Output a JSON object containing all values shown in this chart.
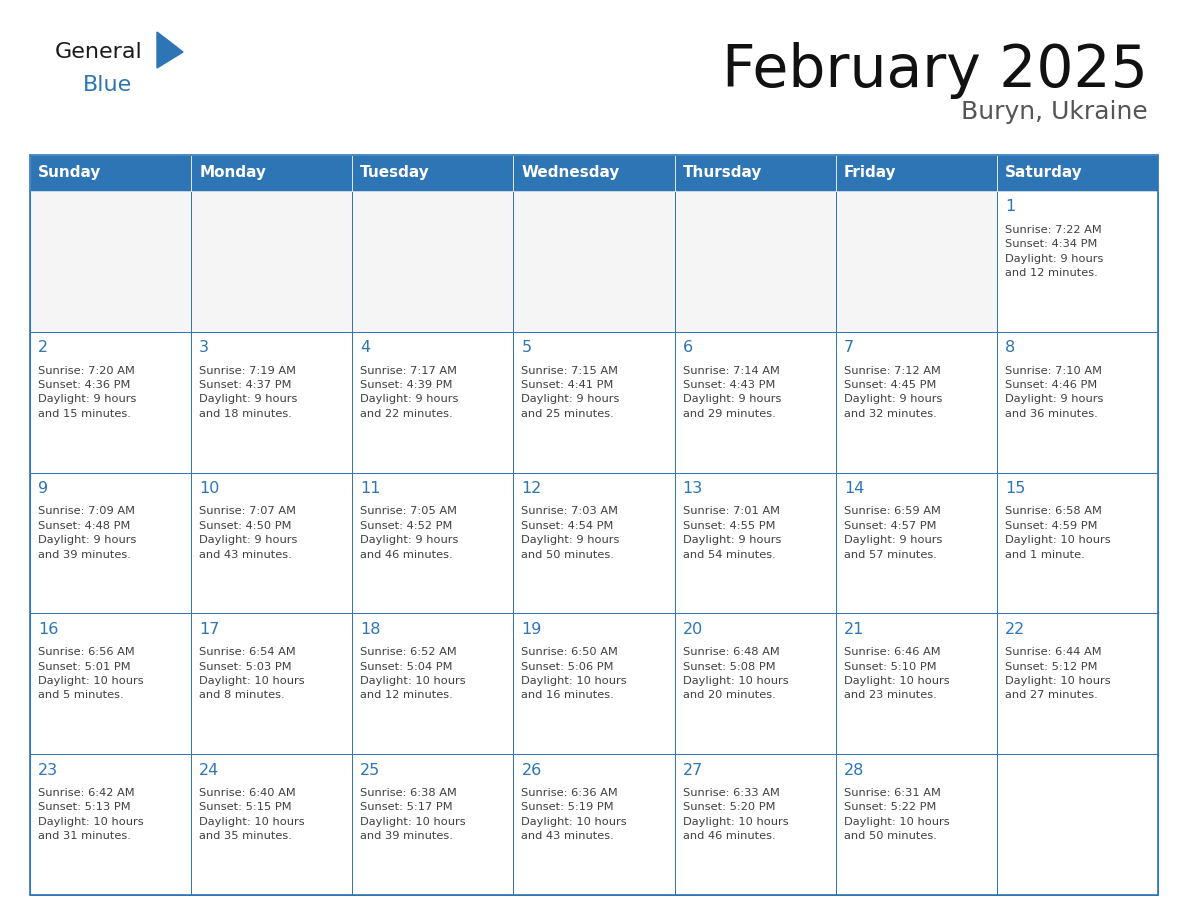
{
  "title": "February 2025",
  "subtitle": "Buryn, Ukraine",
  "header_color": "#2E75B6",
  "header_text_color": "#FFFFFF",
  "cell_bg_color": "#FFFFFF",
  "cell_alt_bg": "#F2F2F2",
  "border_color": "#2E75B6",
  "day_number_color": "#2E75B6",
  "info_text_color": "#404040",
  "days_of_week": [
    "Sunday",
    "Monday",
    "Tuesday",
    "Wednesday",
    "Thursday",
    "Friday",
    "Saturday"
  ],
  "calendar_data": [
    [
      {
        "day": null,
        "info": ""
      },
      {
        "day": null,
        "info": ""
      },
      {
        "day": null,
        "info": ""
      },
      {
        "day": null,
        "info": ""
      },
      {
        "day": null,
        "info": ""
      },
      {
        "day": null,
        "info": ""
      },
      {
        "day": 1,
        "info": "Sunrise: 7:22 AM\nSunset: 4:34 PM\nDaylight: 9 hours\nand 12 minutes."
      }
    ],
    [
      {
        "day": 2,
        "info": "Sunrise: 7:20 AM\nSunset: 4:36 PM\nDaylight: 9 hours\nand 15 minutes."
      },
      {
        "day": 3,
        "info": "Sunrise: 7:19 AM\nSunset: 4:37 PM\nDaylight: 9 hours\nand 18 minutes."
      },
      {
        "day": 4,
        "info": "Sunrise: 7:17 AM\nSunset: 4:39 PM\nDaylight: 9 hours\nand 22 minutes."
      },
      {
        "day": 5,
        "info": "Sunrise: 7:15 AM\nSunset: 4:41 PM\nDaylight: 9 hours\nand 25 minutes."
      },
      {
        "day": 6,
        "info": "Sunrise: 7:14 AM\nSunset: 4:43 PM\nDaylight: 9 hours\nand 29 minutes."
      },
      {
        "day": 7,
        "info": "Sunrise: 7:12 AM\nSunset: 4:45 PM\nDaylight: 9 hours\nand 32 minutes."
      },
      {
        "day": 8,
        "info": "Sunrise: 7:10 AM\nSunset: 4:46 PM\nDaylight: 9 hours\nand 36 minutes."
      }
    ],
    [
      {
        "day": 9,
        "info": "Sunrise: 7:09 AM\nSunset: 4:48 PM\nDaylight: 9 hours\nand 39 minutes."
      },
      {
        "day": 10,
        "info": "Sunrise: 7:07 AM\nSunset: 4:50 PM\nDaylight: 9 hours\nand 43 minutes."
      },
      {
        "day": 11,
        "info": "Sunrise: 7:05 AM\nSunset: 4:52 PM\nDaylight: 9 hours\nand 46 minutes."
      },
      {
        "day": 12,
        "info": "Sunrise: 7:03 AM\nSunset: 4:54 PM\nDaylight: 9 hours\nand 50 minutes."
      },
      {
        "day": 13,
        "info": "Sunrise: 7:01 AM\nSunset: 4:55 PM\nDaylight: 9 hours\nand 54 minutes."
      },
      {
        "day": 14,
        "info": "Sunrise: 6:59 AM\nSunset: 4:57 PM\nDaylight: 9 hours\nand 57 minutes."
      },
      {
        "day": 15,
        "info": "Sunrise: 6:58 AM\nSunset: 4:59 PM\nDaylight: 10 hours\nand 1 minute."
      }
    ],
    [
      {
        "day": 16,
        "info": "Sunrise: 6:56 AM\nSunset: 5:01 PM\nDaylight: 10 hours\nand 5 minutes."
      },
      {
        "day": 17,
        "info": "Sunrise: 6:54 AM\nSunset: 5:03 PM\nDaylight: 10 hours\nand 8 minutes."
      },
      {
        "day": 18,
        "info": "Sunrise: 6:52 AM\nSunset: 5:04 PM\nDaylight: 10 hours\nand 12 minutes."
      },
      {
        "day": 19,
        "info": "Sunrise: 6:50 AM\nSunset: 5:06 PM\nDaylight: 10 hours\nand 16 minutes."
      },
      {
        "day": 20,
        "info": "Sunrise: 6:48 AM\nSunset: 5:08 PM\nDaylight: 10 hours\nand 20 minutes."
      },
      {
        "day": 21,
        "info": "Sunrise: 6:46 AM\nSunset: 5:10 PM\nDaylight: 10 hours\nand 23 minutes."
      },
      {
        "day": 22,
        "info": "Sunrise: 6:44 AM\nSunset: 5:12 PM\nDaylight: 10 hours\nand 27 minutes."
      }
    ],
    [
      {
        "day": 23,
        "info": "Sunrise: 6:42 AM\nSunset: 5:13 PM\nDaylight: 10 hours\nand 31 minutes."
      },
      {
        "day": 24,
        "info": "Sunrise: 6:40 AM\nSunset: 5:15 PM\nDaylight: 10 hours\nand 35 minutes."
      },
      {
        "day": 25,
        "info": "Sunrise: 6:38 AM\nSunset: 5:17 PM\nDaylight: 10 hours\nand 39 minutes."
      },
      {
        "day": 26,
        "info": "Sunrise: 6:36 AM\nSunset: 5:19 PM\nDaylight: 10 hours\nand 43 minutes."
      },
      {
        "day": 27,
        "info": "Sunrise: 6:33 AM\nSunset: 5:20 PM\nDaylight: 10 hours\nand 46 minutes."
      },
      {
        "day": 28,
        "info": "Sunrise: 6:31 AM\nSunset: 5:22 PM\nDaylight: 10 hours\nand 50 minutes."
      },
      {
        "day": null,
        "info": ""
      }
    ]
  ],
  "logo_general_color": "#1A1A1A",
  "logo_blue_color": "#2E75B6",
  "logo_triangle_color": "#2E75B6",
  "fig_width": 11.88,
  "fig_height": 9.18,
  "dpi": 100
}
